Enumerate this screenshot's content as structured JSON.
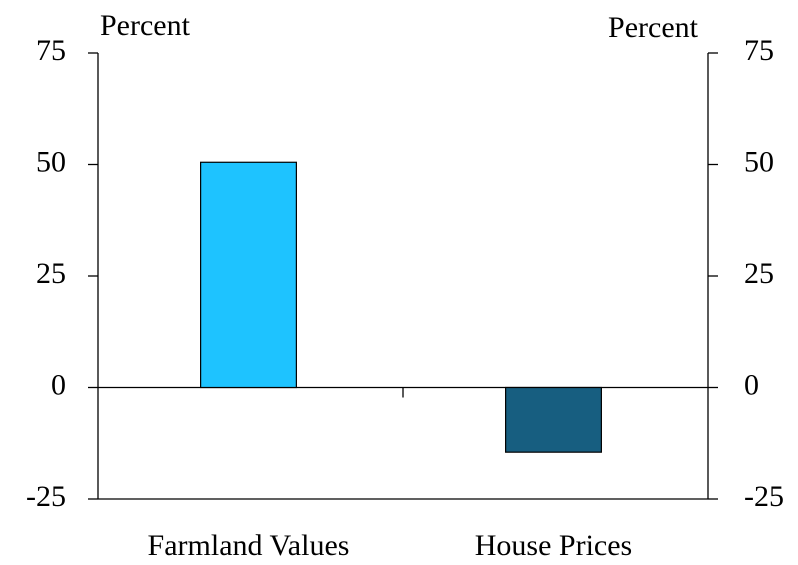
{
  "chart_data": {
    "type": "bar",
    "ylabel": "Percent",
    "y2label": "Percent",
    "categories": [
      "Farmland Values",
      "House Prices"
    ],
    "values": [
      50.5,
      -14.5
    ],
    "colors": [
      "#1ec3ff",
      "#175e80"
    ],
    "ylim": [
      -25,
      75
    ],
    "yticks": [
      -25,
      0,
      25,
      50,
      75
    ],
    "y2lim": [
      -25,
      75
    ],
    "y2ticks": [
      -25,
      0,
      25,
      50,
      75
    ]
  }
}
